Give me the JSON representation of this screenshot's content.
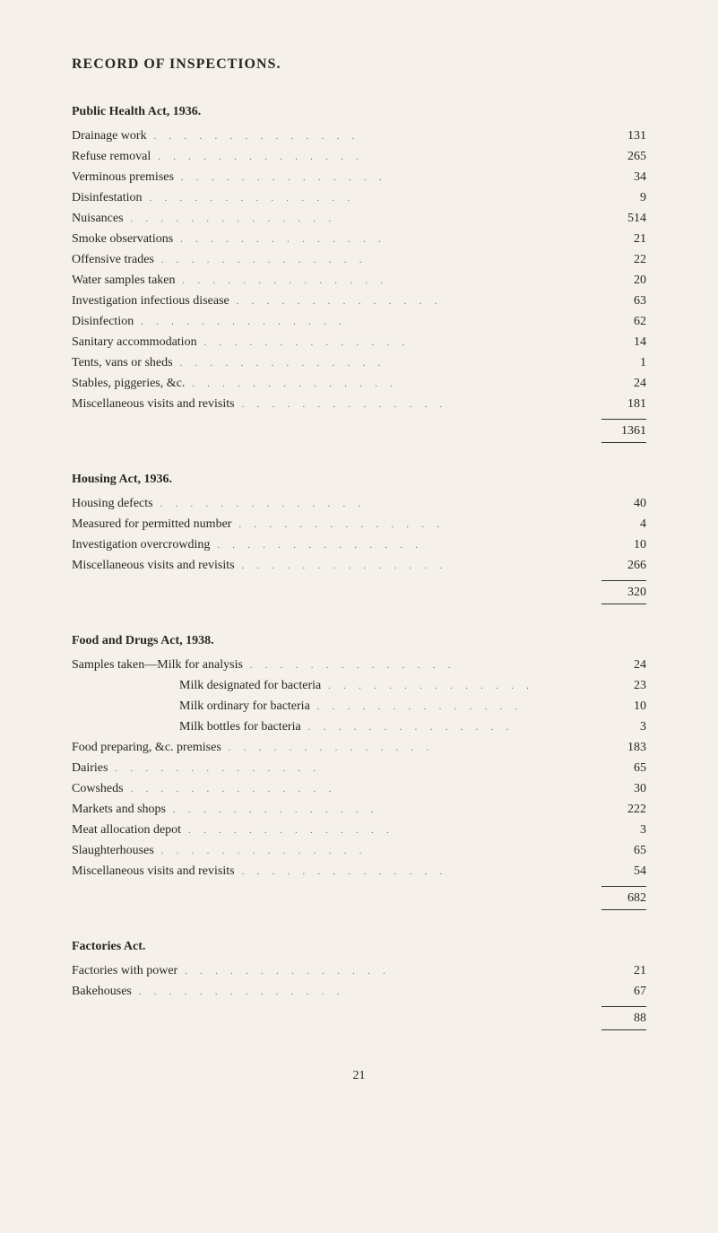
{
  "main_title": "RECORD OF INSPECTIONS.",
  "sections": {
    "public_health": {
      "heading": "Public Health Act, 1936.",
      "items": [
        {
          "label": "Drainage work",
          "value": "131"
        },
        {
          "label": "Refuse removal",
          "value": "265"
        },
        {
          "label": "Verminous premises",
          "value": "34"
        },
        {
          "label": "Disinfestation",
          "value": "9"
        },
        {
          "label": "Nuisances",
          "value": "514"
        },
        {
          "label": "Smoke observations",
          "value": "21"
        },
        {
          "label": "Offensive trades",
          "value": "22"
        },
        {
          "label": "Water samples taken",
          "value": "20"
        },
        {
          "label": "Investigation infectious disease",
          "value": "63"
        },
        {
          "label": "Disinfection",
          "value": "62"
        },
        {
          "label": "Sanitary accommodation",
          "value": "14"
        },
        {
          "label": "Tents, vans or sheds",
          "value": "1"
        },
        {
          "label": "Stables, piggeries, &c.",
          "value": "24"
        },
        {
          "label": "Miscellaneous visits and revisits",
          "value": "181"
        }
      ],
      "total": "1361"
    },
    "housing": {
      "heading": "Housing Act, 1936.",
      "items": [
        {
          "label": "Housing defects",
          "value": "40"
        },
        {
          "label": "Measured for permitted number",
          "value": "4"
        },
        {
          "label": "Investigation overcrowding",
          "value": "10"
        },
        {
          "label": "Miscellaneous visits and revisits",
          "value": "266"
        }
      ],
      "total": "320"
    },
    "food_drugs": {
      "heading": "Food and Drugs Act, 1938.",
      "items": [
        {
          "label": "Samples taken—Milk for analysis",
          "value": "24",
          "indent": false
        },
        {
          "label": "Milk designated for bacteria",
          "value": "23",
          "indent": true
        },
        {
          "label": "Milk ordinary for bacteria",
          "value": "10",
          "indent": true
        },
        {
          "label": "Milk bottles for bacteria",
          "value": "3",
          "indent": true
        },
        {
          "label": "Food preparing, &c. premises",
          "value": "183",
          "indent": false
        },
        {
          "label": "Dairies",
          "value": "65",
          "indent": false
        },
        {
          "label": "Cowsheds",
          "value": "30",
          "indent": false
        },
        {
          "label": "Markets and shops",
          "value": "222",
          "indent": false
        },
        {
          "label": "Meat allocation depot",
          "value": "3",
          "indent": false
        },
        {
          "label": "Slaughterhouses",
          "value": "65",
          "indent": false
        },
        {
          "label": "Miscellaneous visits and revisits",
          "value": "54",
          "indent": false
        }
      ],
      "total": "682"
    },
    "factories": {
      "heading": "Factories Act.",
      "items": [
        {
          "label": "Factories with power",
          "value": "21"
        },
        {
          "label": "Bakehouses",
          "value": "67"
        }
      ],
      "total": "88"
    }
  },
  "page_number": "21",
  "dot_leader": ". . . . . . . . . . . . . ."
}
